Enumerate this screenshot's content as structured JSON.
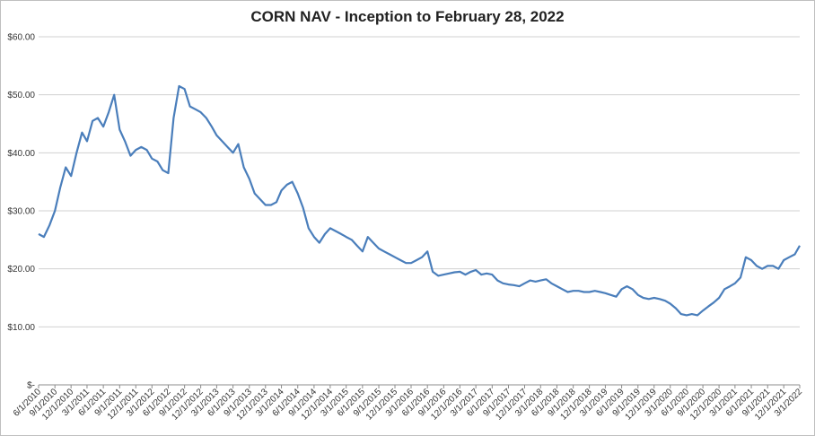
{
  "chart_data": {
    "type": "line",
    "title": "CORN NAV - Inception to February 28, 2022",
    "xlabel": "",
    "ylabel": "",
    "ylim": [
      0,
      60
    ],
    "y_ticks": [
      {
        "value": 0,
        "label": "$-"
      },
      {
        "value": 10,
        "label": "$10.00"
      },
      {
        "value": 20,
        "label": "$20.00"
      },
      {
        "value": 30,
        "label": "$30.00"
      },
      {
        "value": 40,
        "label": "$40.00"
      },
      {
        "value": 50,
        "label": "$50.00"
      },
      {
        "value": 60,
        "label": "$60.00"
      }
    ],
    "x_start": "6/1/2010",
    "x_end": "3/1/2022",
    "x_tick_labels": [
      "6/1/2010",
      "9/1/2010",
      "12/1/2010",
      "3/1/2011",
      "6/1/2011",
      "9/1/2011",
      "12/1/2011",
      "3/1/2012",
      "6/1/2012",
      "9/1/2012",
      "12/1/2012",
      "3/1/2013",
      "6/1/2013",
      "9/1/2013",
      "12/1/2013",
      "3/1/2014",
      "6/1/2014",
      "9/1/2014",
      "12/1/2014",
      "3/1/2015",
      "6/1/2015",
      "9/1/2015",
      "12/1/2015",
      "3/1/2016",
      "6/1/2016",
      "9/1/2016",
      "12/1/2016",
      "3/1/2017",
      "6/1/2017",
      "9/1/2017",
      "12/1/2017",
      "3/1/2018",
      "6/1/2018",
      "9/1/2018",
      "12/1/2018",
      "3/1/2019",
      "6/1/2019",
      "9/1/2019",
      "12/1/2019",
      "3/1/2020",
      "6/1/2020",
      "9/1/2020",
      "12/1/2020",
      "3/1/2021",
      "6/1/2021",
      "9/1/2021",
      "12/1/2021",
      "3/1/2022"
    ],
    "grid": true,
    "legend": "none",
    "line_color": "#4a7ebb",
    "series": [
      {
        "x": [
          "6/1/2010",
          "7/1/2010",
          "8/1/2010",
          "9/1/2010",
          "10/1/2010",
          "11/1/2010",
          "12/1/2010",
          "1/1/2011",
          "2/1/2011",
          "3/1/2011",
          "4/1/2011",
          "5/1/2011",
          "6/1/2011",
          "7/1/2011",
          "8/1/2011",
          "9/1/2011",
          "10/1/2011",
          "11/1/2011",
          "12/1/2011",
          "1/1/2012",
          "2/1/2012",
          "3/1/2012",
          "4/1/2012",
          "5/1/2012",
          "6/1/2012",
          "7/1/2012",
          "8/1/2012",
          "9/1/2012",
          "10/1/2012",
          "11/1/2012",
          "12/1/2012",
          "1/1/2013",
          "2/1/2013",
          "3/1/2013",
          "4/1/2013",
          "5/1/2013",
          "6/1/2013",
          "7/1/2013",
          "8/1/2013",
          "9/1/2013",
          "10/1/2013",
          "11/1/2013",
          "12/1/2013",
          "1/1/2014",
          "2/1/2014",
          "3/1/2014",
          "4/1/2014",
          "5/1/2014",
          "6/1/2014",
          "7/1/2014",
          "8/1/2014",
          "9/1/2014",
          "10/1/2014",
          "11/1/2014",
          "12/1/2014",
          "1/1/2015",
          "2/1/2015",
          "3/1/2015",
          "4/1/2015",
          "5/1/2015",
          "6/1/2015",
          "7/1/2015",
          "8/1/2015",
          "9/1/2015",
          "10/1/2015",
          "11/1/2015",
          "12/1/2015",
          "1/1/2016",
          "2/1/2016",
          "3/1/2016",
          "4/1/2016",
          "5/1/2016",
          "6/1/2016",
          "7/1/2016",
          "8/1/2016",
          "9/1/2016",
          "10/1/2016",
          "11/1/2016",
          "12/1/2016",
          "1/1/2017",
          "2/1/2017",
          "3/1/2017",
          "4/1/2017",
          "5/1/2017",
          "6/1/2017",
          "7/1/2017",
          "8/1/2017",
          "9/1/2017",
          "10/1/2017",
          "11/1/2017",
          "12/1/2017",
          "1/1/2018",
          "2/1/2018",
          "3/1/2018",
          "4/1/2018",
          "5/1/2018",
          "6/1/2018",
          "7/1/2018",
          "8/1/2018",
          "9/1/2018",
          "10/1/2018",
          "11/1/2018",
          "12/1/2018",
          "1/1/2019",
          "2/1/2019",
          "3/1/2019",
          "4/1/2019",
          "5/1/2019",
          "6/1/2019",
          "7/1/2019",
          "8/1/2019",
          "9/1/2019",
          "10/1/2019",
          "11/1/2019",
          "12/1/2019",
          "1/1/2020",
          "2/1/2020",
          "3/1/2020",
          "4/1/2020",
          "5/1/2020",
          "6/1/2020",
          "7/1/2020",
          "8/1/2020",
          "9/1/2020",
          "10/1/2020",
          "11/1/2020",
          "12/1/2020",
          "1/1/2021",
          "2/1/2021",
          "3/1/2021",
          "4/1/2021",
          "5/1/2021",
          "6/1/2021",
          "7/1/2021",
          "8/1/2021",
          "9/1/2021",
          "10/1/2021",
          "11/1/2021",
          "12/1/2021",
          "1/1/2022",
          "2/1/2022",
          "3/1/2022"
        ],
        "y": [
          26.0,
          25.5,
          27.5,
          30.0,
          34.0,
          37.5,
          36.0,
          40.0,
          43.5,
          42.0,
          45.5,
          46.0,
          44.5,
          47.0,
          50.0,
          44.0,
          42.0,
          39.5,
          40.5,
          41.0,
          40.5,
          39.0,
          38.5,
          37.0,
          36.5,
          46.0,
          51.5,
          51.0,
          48.0,
          47.5,
          47.0,
          46.0,
          44.5,
          43.0,
          42.0,
          41.0,
          40.0,
          41.5,
          37.5,
          35.5,
          33.0,
          32.0,
          31.0,
          31.0,
          31.5,
          33.5,
          34.5,
          35.0,
          33.0,
          30.5,
          27.0,
          25.5,
          24.5,
          26.0,
          27.0,
          26.5,
          26.0,
          25.5,
          25.0,
          24.0,
          23.0,
          25.5,
          24.5,
          23.5,
          23.0,
          22.5,
          22.0,
          21.5,
          21.0,
          21.0,
          21.5,
          22.0,
          23.0,
          19.5,
          18.8,
          19.0,
          19.2,
          19.4,
          19.5,
          19.0,
          19.5,
          19.8,
          19.0,
          19.2,
          19.0,
          18.0,
          17.5,
          17.3,
          17.2,
          17.0,
          17.5,
          18.0,
          17.8,
          18.0,
          18.2,
          17.5,
          17.0,
          16.5,
          16.0,
          16.2,
          16.2,
          16.0,
          16.0,
          16.2,
          16.0,
          15.8,
          15.5,
          15.2,
          16.5,
          17.0,
          16.5,
          15.5,
          15.0,
          14.8,
          15.0,
          14.8,
          14.5,
          14.0,
          13.2,
          12.2,
          12.0,
          12.2,
          12.0,
          12.8,
          13.5,
          14.2,
          15.0,
          16.5,
          17.0,
          17.5,
          18.5,
          22.0,
          21.5,
          20.5,
          20.0,
          20.5,
          20.5,
          20.0,
          21.5,
          22.0,
          22.5,
          24.0
        ]
      }
    ]
  }
}
